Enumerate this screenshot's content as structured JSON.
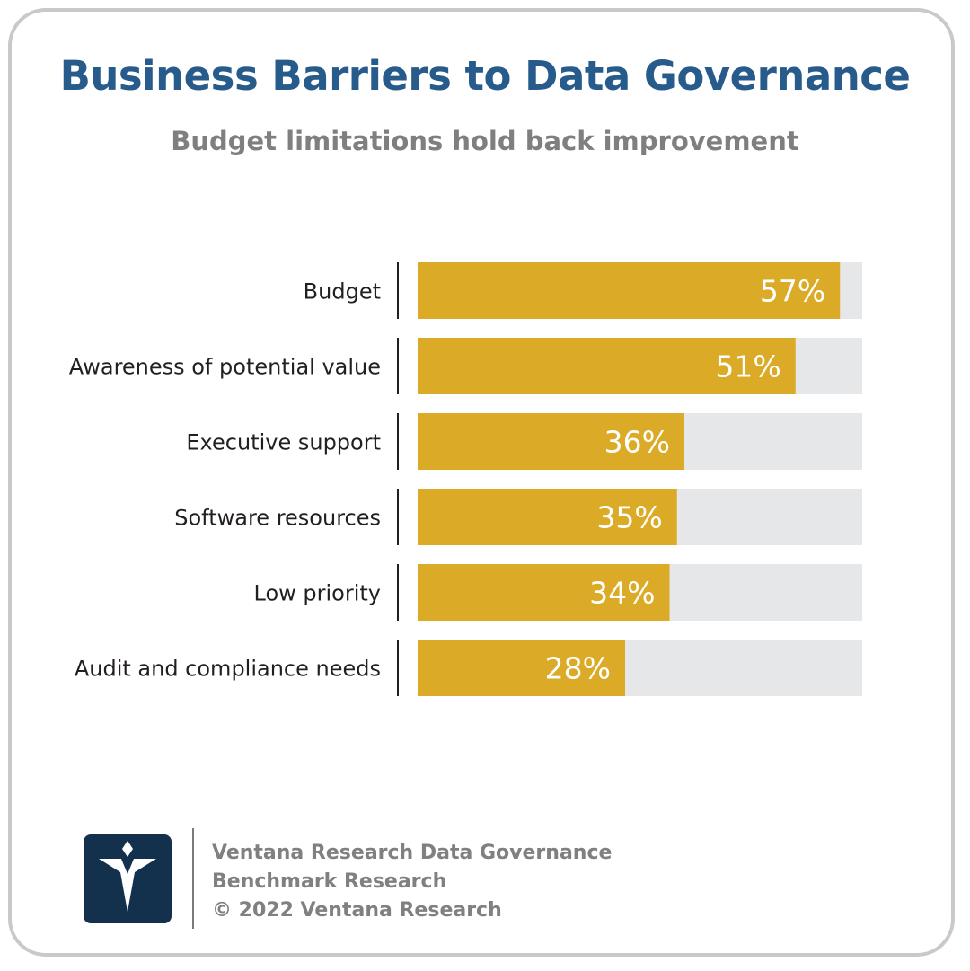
{
  "header": {
    "title": "Business Barriers to Data Governance",
    "subtitle": "Budget limitations hold back improvement"
  },
  "colors": {
    "bar": "#dbab27",
    "track": "#e6e7e8",
    "label": "#231f20",
    "value_label": "#ffffff",
    "title": "#275b8c",
    "subtitle": "#7f7f7f",
    "logo_bg": "#13314d"
  },
  "chart_data": {
    "type": "bar",
    "orientation": "horizontal",
    "title": "Business Barriers to Data Governance",
    "subtitle": "Budget limitations hold back improvement",
    "categories": [
      "Budget",
      "Awareness of potential value",
      "Executive support",
      "Software resources",
      "Low priority",
      "Audit and compliance needs"
    ],
    "values": [
      57,
      51,
      36,
      35,
      34,
      28
    ],
    "value_labels": [
      "57%",
      "51%",
      "36%",
      "35%",
      "34%",
      "28%"
    ],
    "unit": "%",
    "xlim": [
      0,
      60
    ],
    "grid": false,
    "legend": "none"
  },
  "footer": {
    "logo_icon": "ventana-v-logo-icon",
    "lines": [
      "Ventana Research Data Governance",
      "Benchmark Research",
      "© 2022 Ventana Research"
    ]
  }
}
